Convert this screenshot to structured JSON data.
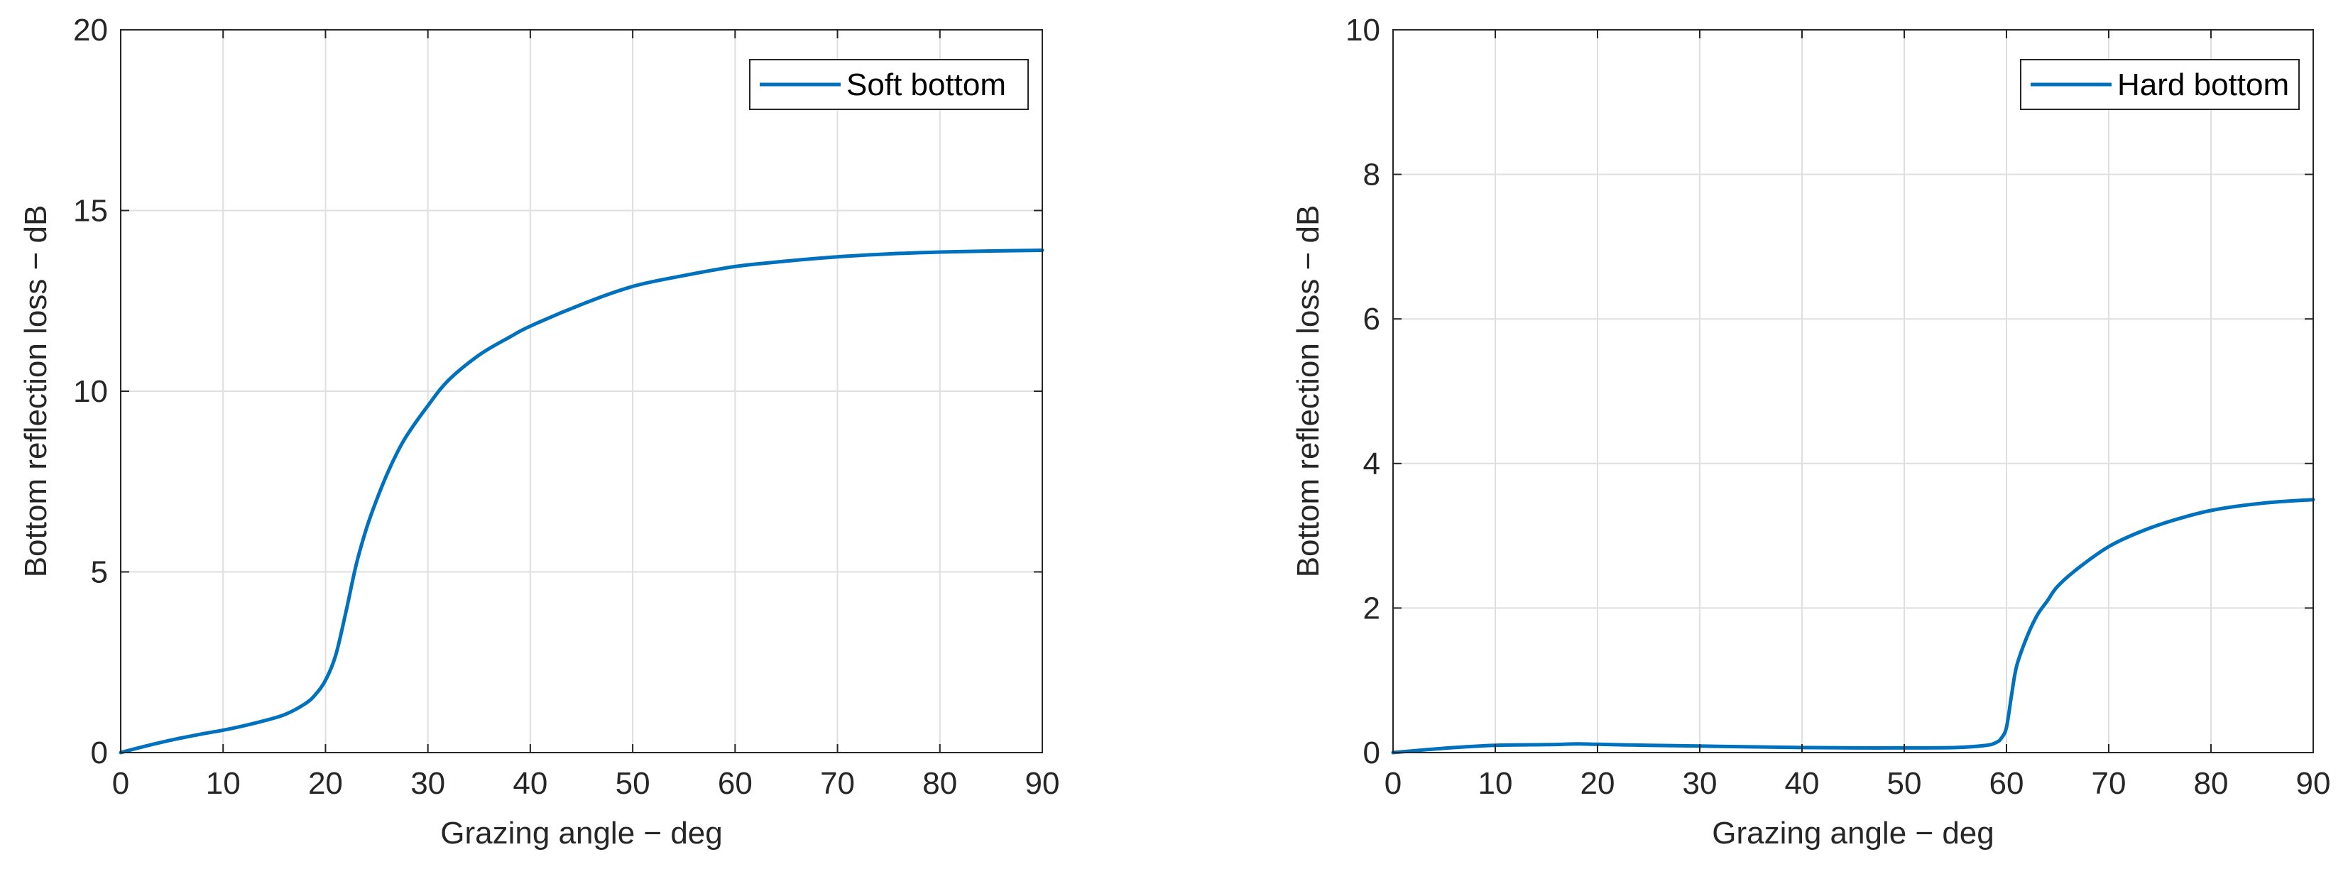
{
  "figure": {
    "background": "#ffffff",
    "line_color": "#0072BD",
    "grid_color": "#dfdfdf",
    "axis_color": "#262626"
  },
  "chart_data": [
    {
      "type": "line",
      "xlabel": "Grazing angle − deg",
      "ylabel": "Bottom reflection loss − dB",
      "xlim": [
        0,
        90
      ],
      "ylim": [
        0,
        20
      ],
      "xticks": [
        0,
        10,
        20,
        30,
        40,
        50,
        60,
        70,
        80,
        90
      ],
      "yticks": [
        0,
        5,
        10,
        15,
        20
      ],
      "grid": true,
      "legend": "top-right",
      "series": [
        {
          "name": "Soft bottom",
          "x": [
            0,
            2,
            5,
            8,
            10,
            12,
            14,
            16,
            18,
            19,
            20,
            21,
            22,
            23,
            24,
            25,
            26,
            27,
            28,
            30,
            32,
            35,
            38,
            40,
            45,
            50,
            55,
            60,
            65,
            70,
            75,
            80,
            85,
            90
          ],
          "y": [
            0,
            0.15,
            0.35,
            0.52,
            0.62,
            0.74,
            0.88,
            1.05,
            1.35,
            1.6,
            2.0,
            2.7,
            3.9,
            5.2,
            6.2,
            7.0,
            7.7,
            8.3,
            8.8,
            9.6,
            10.3,
            11.0,
            11.5,
            11.8,
            12.4,
            12.9,
            13.2,
            13.45,
            13.6,
            13.72,
            13.8,
            13.85,
            13.88,
            13.9
          ]
        }
      ]
    },
    {
      "type": "line",
      "xlabel": "Grazing angle − deg",
      "ylabel": "Bottom reflection loss − dB",
      "xlim": [
        0,
        90
      ],
      "ylim": [
        0,
        10
      ],
      "xticks": [
        0,
        10,
        20,
        30,
        40,
        50,
        60,
        70,
        80,
        90
      ],
      "yticks": [
        0,
        2,
        4,
        6,
        8,
        10
      ],
      "grid": true,
      "legend": "top-right",
      "series": [
        {
          "name": "Hard bottom",
          "x": [
            0,
            5,
            10,
            15,
            18,
            20,
            25,
            30,
            35,
            40,
            45,
            50,
            55,
            58,
            59,
            59.5,
            60,
            60.5,
            61,
            62,
            63,
            64,
            65,
            67,
            70,
            73,
            76,
            80,
            85,
            90
          ],
          "y": [
            0,
            0.06,
            0.1,
            0.11,
            0.12,
            0.115,
            0.1,
            0.09,
            0.08,
            0.07,
            0.065,
            0.065,
            0.07,
            0.1,
            0.14,
            0.2,
            0.35,
            0.8,
            1.2,
            1.6,
            1.9,
            2.1,
            2.3,
            2.55,
            2.85,
            3.05,
            3.2,
            3.35,
            3.45,
            3.5
          ]
        }
      ]
    }
  ]
}
